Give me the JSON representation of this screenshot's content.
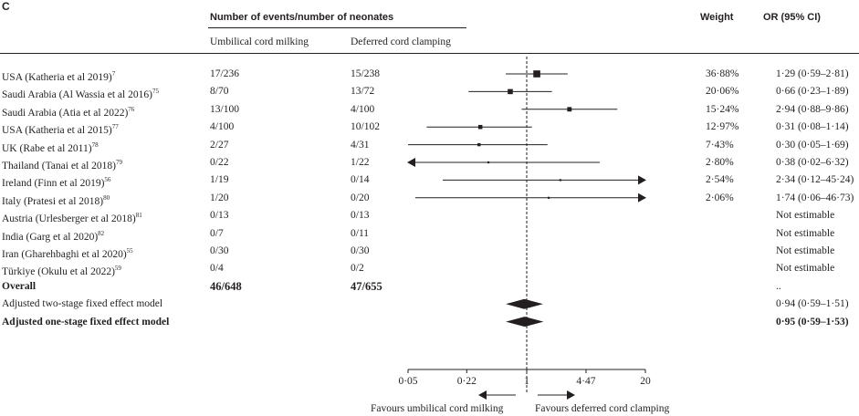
{
  "panel_label": "C",
  "header": {
    "events_title": "Number of events/number of neonates",
    "col_ucm": "Umbilical cord milking",
    "col_dcc": "Deferred cord clamping",
    "weight": "Weight",
    "or_ci": "OR (95% CI)"
  },
  "studies": [
    {
      "label": "USA (Katheria et al 2019)",
      "sup": "7",
      "ucm": "17/236",
      "dcc": "15/238",
      "weight": "36·88%",
      "or_text": "1·29 (0·59–2·81)",
      "or": 1.29,
      "lo": 0.59,
      "hi": 2.81,
      "w": 36.88
    },
    {
      "label": "Saudi Arabia (Al Wassia et al 2016)",
      "sup": "75",
      "ucm": "8/70",
      "dcc": "13/72",
      "weight": "20·06%",
      "or_text": "0·66 (0·23–1·89)",
      "or": 0.66,
      "lo": 0.23,
      "hi": 1.89,
      "w": 20.06
    },
    {
      "label": "Saudi Arabia (Atia et al 2022)",
      "sup": "76",
      "ucm": "13/100",
      "dcc": "4/100",
      "weight": "15·24%",
      "or_text": "2·94 (0·88–9·86)",
      "or": 2.94,
      "lo": 0.88,
      "hi": 9.86,
      "w": 15.24
    },
    {
      "label": "USA (Katheria et al 2015)",
      "sup": "77",
      "ucm": "4/100",
      "dcc": "10/102",
      "weight": "12·97%",
      "or_text": "0·31 (0·08–1·14)",
      "or": 0.31,
      "lo": 0.08,
      "hi": 1.14,
      "w": 12.97
    },
    {
      "label": "UK (Rabe et al 2011)",
      "sup": "78",
      "ucm": "2/27",
      "dcc": "4/31",
      "weight": "7·43%",
      "or_text": "0·30 (0·05–1·69)",
      "or": 0.3,
      "lo": 0.05,
      "hi": 1.69,
      "w": 7.43
    },
    {
      "label": "Thailand (Tanai et al 2018)",
      "sup": "79",
      "ucm": "0/22",
      "dcc": "1/22",
      "weight": "2·80%",
      "or_text": "0·38 (0·02–6·32)",
      "or": 0.38,
      "lo": 0.02,
      "hi": 6.32,
      "w": 2.8
    },
    {
      "label": "Ireland (Finn et al 2019)",
      "sup": "56",
      "ucm": "1/19",
      "dcc": "0/14",
      "weight": "2·54%",
      "or_text": "2·34 (0·12–45·24)",
      "or": 2.34,
      "lo": 0.12,
      "hi": 45.24,
      "w": 2.54
    },
    {
      "label": "Italy (Pratesi et al 2018)",
      "sup": "80",
      "ucm": "1/20",
      "dcc": "0/20",
      "weight": "2·06%",
      "or_text": "1·74 (0·06–46·73)",
      "or": 1.74,
      "lo": 0.06,
      "hi": 46.73,
      "w": 2.06
    },
    {
      "label": "Austria (Urlesberger et al 2018)",
      "sup": "81",
      "ucm": "0/13",
      "dcc": "0/13",
      "weight": "",
      "or_text": "Not estimable",
      "or": null,
      "lo": null,
      "hi": null,
      "w": null
    },
    {
      "label": "India (Garg et al 2020)",
      "sup": "82",
      "ucm": "0/7",
      "dcc": "0/11",
      "weight": "",
      "or_text": "Not estimable",
      "or": null,
      "lo": null,
      "hi": null,
      "w": null
    },
    {
      "label": "Iran (Gharehbaghi et al 2020)",
      "sup": "55",
      "ucm": "0/30",
      "dcc": "0/30",
      "weight": "",
      "or_text": "Not estimable",
      "or": null,
      "lo": null,
      "hi": null,
      "w": null
    },
    {
      "label": "Türkiye (Okulu et al 2022)",
      "sup": "59",
      "ucm": "0/4",
      "dcc": "0/2",
      "weight": "",
      "or_text": "Not estimable",
      "or": null,
      "lo": null,
      "hi": null,
      "w": null
    }
  ],
  "overall": {
    "label": "Overall",
    "ucm": "46/648",
    "dcc": "47/655",
    "or_text": ".."
  },
  "summaries": [
    {
      "label": "Adjusted two-stage fixed effect model",
      "or_text": "0·94 (0·59–1·51)",
      "or": 0.94,
      "lo": 0.59,
      "hi": 1.51,
      "bold": false
    },
    {
      "label": "Adjusted one-stage fixed effect model",
      "or_text": "0·95 (0·59–1·53)",
      "or": 0.95,
      "lo": 0.59,
      "hi": 1.53,
      "bold": true
    }
  ],
  "axis": {
    "ticks": [
      "0·05",
      "0·22",
      "1",
      "4·47",
      "20"
    ],
    "tick_values": [
      0.05,
      0.22,
      1,
      4.47,
      20
    ],
    "xlim": [
      0.05,
      20
    ],
    "scale": "log"
  },
  "favours": {
    "left": "Favours umbilical cord milking",
    "right": "Favours deferred cord clamping"
  },
  "chart_data": {
    "type": "forest",
    "xlabel": "",
    "scale": "log",
    "xlim": [
      0.05,
      20
    ],
    "reference_line": 1,
    "studies": [
      {
        "name": "USA (Katheria et al 2019)",
        "or": 1.29,
        "lo": 0.59,
        "hi": 2.81,
        "weight": 36.88
      },
      {
        "name": "Saudi Arabia (Al Wassia et al 2016)",
        "or": 0.66,
        "lo": 0.23,
        "hi": 1.89,
        "weight": 20.06
      },
      {
        "name": "Saudi Arabia (Atia et al 2022)",
        "or": 2.94,
        "lo": 0.88,
        "hi": 9.86,
        "weight": 15.24
      },
      {
        "name": "USA (Katheria et al 2015)",
        "or": 0.31,
        "lo": 0.08,
        "hi": 1.14,
        "weight": 12.97
      },
      {
        "name": "UK (Rabe et al 2011)",
        "or": 0.3,
        "lo": 0.05,
        "hi": 1.69,
        "weight": 7.43
      },
      {
        "name": "Thailand (Tanai et al 2018)",
        "or": 0.38,
        "lo": 0.02,
        "hi": 6.32,
        "weight": 2.8
      },
      {
        "name": "Ireland (Finn et al 2019)",
        "or": 2.34,
        "lo": 0.12,
        "hi": 45.24,
        "weight": 2.54
      },
      {
        "name": "Italy (Pratesi et al 2018)",
        "or": 1.74,
        "lo": 0.06,
        "hi": 46.73,
        "weight": 2.06
      }
    ],
    "pooled": [
      {
        "name": "Adjusted two-stage fixed effect model",
        "or": 0.94,
        "lo": 0.59,
        "hi": 1.51
      },
      {
        "name": "Adjusted one-stage fixed effect model",
        "or": 0.95,
        "lo": 0.59,
        "hi": 1.53
      }
    ]
  }
}
